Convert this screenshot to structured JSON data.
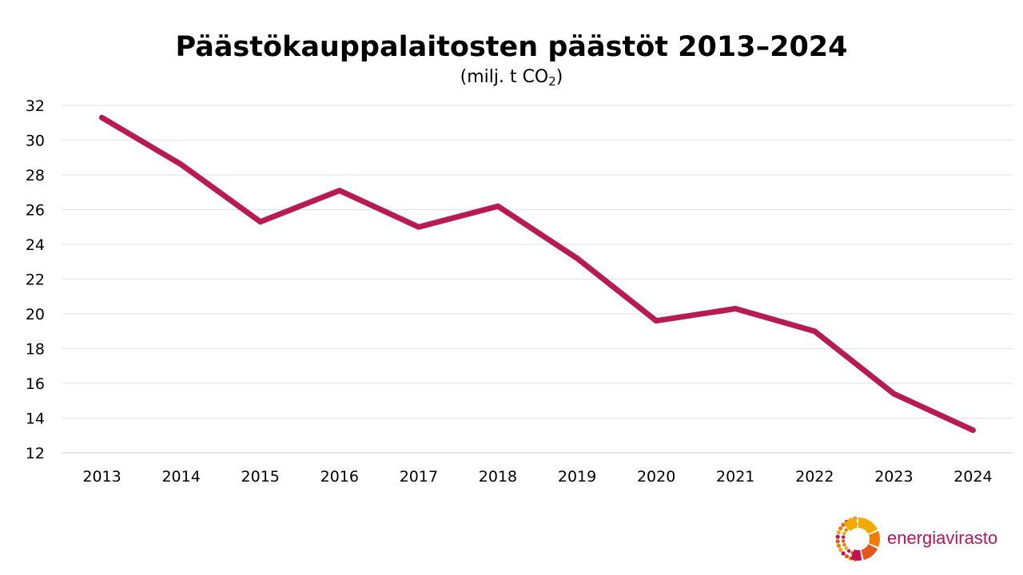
{
  "chart_data": {
    "type": "line",
    "title": "Päästökauppalaitosten päästöt 2013–2024",
    "subtitle": {
      "prefix": "(milj. t CO",
      "sub": "2",
      "suffix": ")"
    },
    "categories": [
      "2013",
      "2014",
      "2015",
      "2016",
      "2017",
      "2018",
      "2019",
      "2020",
      "2021",
      "2022",
      "2023",
      "2024"
    ],
    "series": [
      {
        "values": [
          31.3,
          28.6,
          25.3,
          27.1,
          25.0,
          26.2,
          23.2,
          19.6,
          20.3,
          19.0,
          15.4,
          13.3
        ],
        "color": "#b81b52"
      }
    ],
    "ylim": [
      12,
      32
    ],
    "yticks": [
      12,
      14,
      16,
      18,
      20,
      22,
      24,
      26,
      28,
      30,
      32
    ],
    "grid": true,
    "legend": "none"
  },
  "logo": {
    "text": "energiavirasto",
    "text_color": "#c0124f",
    "mark_colors": [
      "#f5a800",
      "#f07d00",
      "#e2571b",
      "#c0124f"
    ],
    "icon": "sun-icon"
  }
}
